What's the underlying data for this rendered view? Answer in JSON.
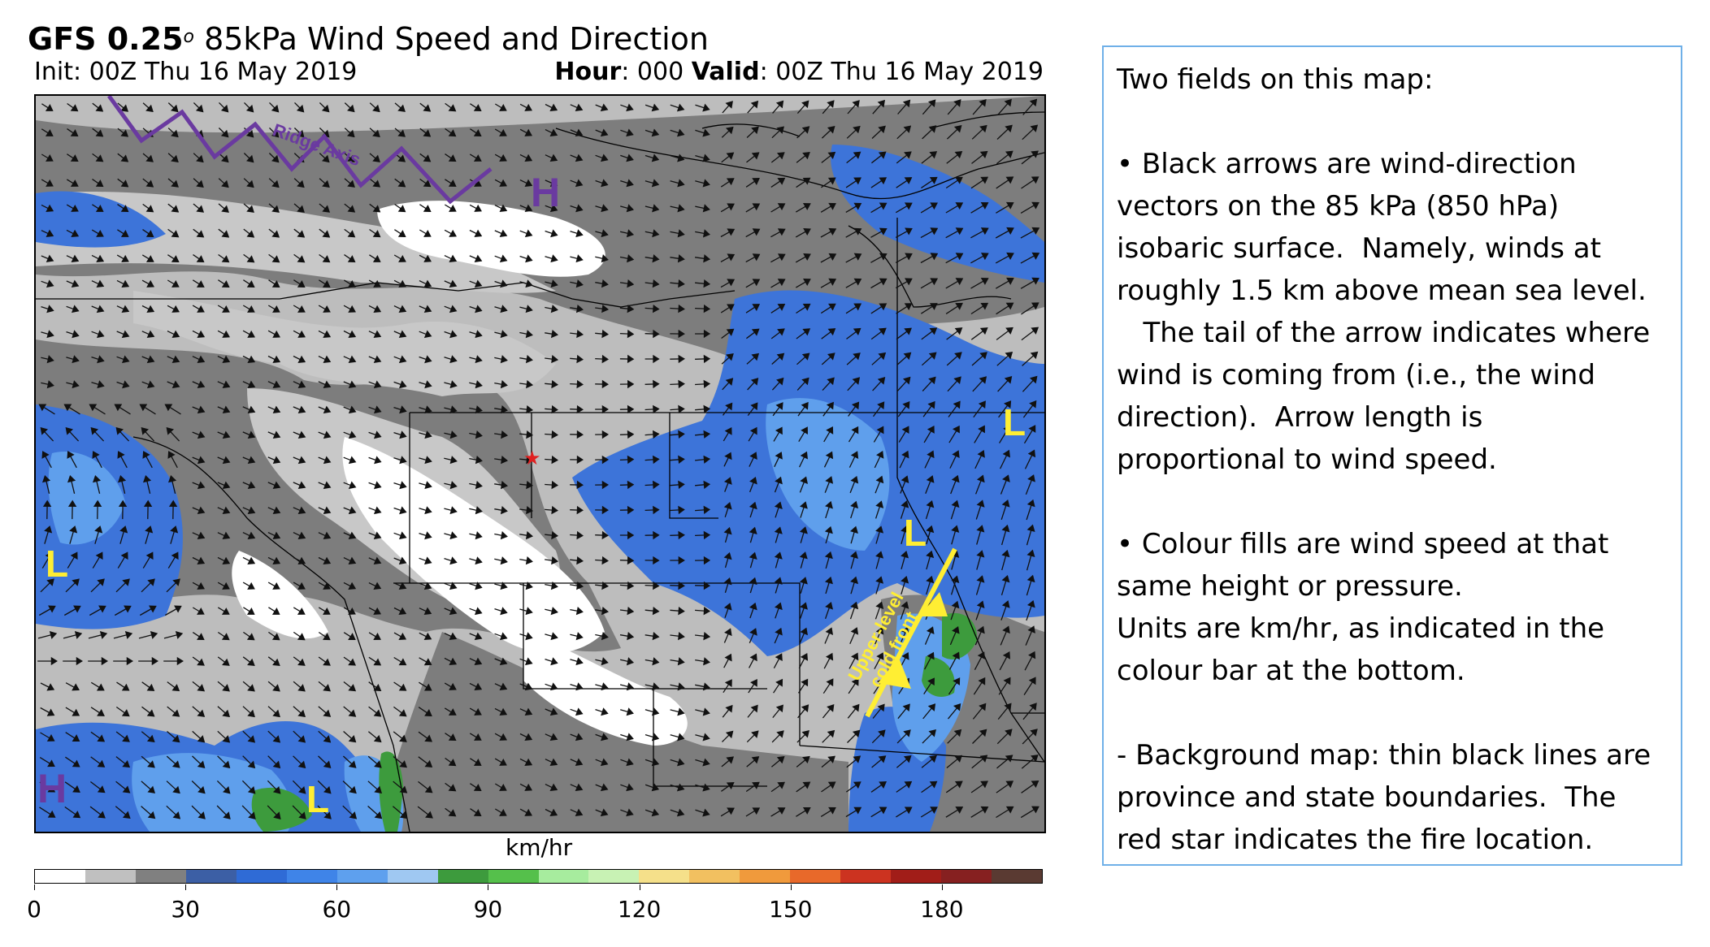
{
  "header": {
    "model": "GFS 0.25",
    "degree": "o",
    "title_rest": " 85kPa  Wind Speed and Direction",
    "init": "Init: 00Z Thu 16 May 2019",
    "hour_label": "Hour",
    "hour_value": ": 000",
    "valid_label": "Valid",
    "valid_value": ": 00Z Thu 16 May 2019"
  },
  "map": {
    "annotations": {
      "ridge_axis": "Ridge Axis",
      "cold_front": "Upper-level cold front",
      "cold_front_line1": "Upper-level",
      "cold_front_line2": "cold front"
    },
    "pressure_centers": [
      "H",
      "H",
      "L",
      "L",
      "L",
      "L"
    ],
    "colors": {
      "annotation_purple": "#6a3aa0",
      "annotation_yellow": "#ffee33",
      "fire_star": "#e02020"
    },
    "fire_star_label": "★"
  },
  "colorbar": {
    "units": "km/hr",
    "tick_labels": [
      "0",
      "30",
      "60",
      "90",
      "120",
      "150",
      "180"
    ],
    "tick_values": [
      0,
      30,
      60,
      90,
      120,
      150,
      180
    ],
    "range": [
      0,
      200
    ],
    "step": 10,
    "colors": [
      "#ffffff",
      "#c0c0c0",
      "#808080",
      "#3c5fa5",
      "#2f6bd6",
      "#3f84e8",
      "#5ea0ee",
      "#9fc8f2",
      "#3d9b3d",
      "#55c04b",
      "#a7ec9e",
      "#c8f2b4",
      "#f5e08a",
      "#f2c060",
      "#f09a3c",
      "#e8692a",
      "#cc3320",
      "#a11d18",
      "#862020",
      "#5a3a32"
    ]
  },
  "notes": {
    "heading": "Two fields on this map:",
    "p1_line1": "• Black arrows are wind-direction",
    "p1_line2": "vectors on the 85 kPa (850 hPa)",
    "p1_line3": "isobaric surface.  Namely, winds at",
    "p1_line4": "roughly 1.5 km above mean sea level.",
    "p1_line5": "   The tail of the arrow indicates where",
    "p1_line6": "wind is coming from (i.e., the wind",
    "p1_line7": "direction).  Arrow length is",
    "p1_line8": "proportional to wind speed.",
    "p2_line1": "• Colour fills are wind speed at that",
    "p2_line2": "same height or pressure.",
    "p2_line3": "Units are km/hr, as indicated in the",
    "p2_line4": "colour bar at the bottom.",
    "p3_line1": "- Background map: thin black lines are",
    "p3_line2": "province and state boundaries.  The",
    "p3_line3": "red star indicates the fire location."
  }
}
